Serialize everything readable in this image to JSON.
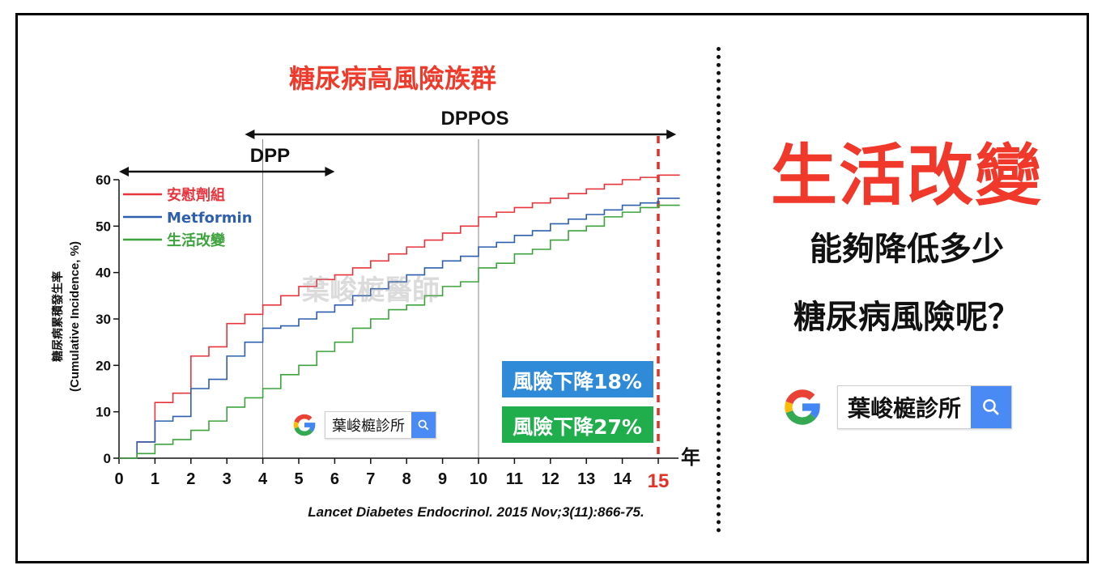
{
  "chart_data": {
    "type": "line",
    "step": true,
    "title": "糖尿病高風險族群",
    "ylabel_cn": "糖尿病累積發生率",
    "ylabel_en": "(Cumulative Incidence, %)",
    "xlabel": "年",
    "xlim": [
      0,
      15
    ],
    "ylim": [
      0,
      60
    ],
    "xticks": [
      "0",
      "1",
      "2",
      "3",
      "4",
      "5",
      "6",
      "7",
      "8",
      "9",
      "10",
      "11",
      "12",
      "13",
      "14",
      "15"
    ],
    "yticks": [
      "0",
      "10",
      "20",
      "30",
      "40",
      "50",
      "60"
    ],
    "highlight_x": 15,
    "vertical_guides": [
      4,
      10
    ],
    "periods": [
      {
        "label": "DPP",
        "from": 0,
        "to": 6
      },
      {
        "label": "DPPOS",
        "from": 3.5,
        "to": 15.5
      }
    ],
    "series": [
      {
        "name": "安慰劑組",
        "color": "#e8343c",
        "x": [
          0.5,
          1,
          1.5,
          2,
          2.5,
          3,
          3.5,
          4,
          4.5,
          5,
          5.5,
          6,
          6.5,
          7,
          7.5,
          8,
          8.5,
          9,
          9.5,
          10,
          10.5,
          11,
          11.5,
          12,
          12.5,
          13,
          13.5,
          14,
          14.5,
          15
        ],
        "y": [
          3.5,
          12,
          14,
          22,
          24,
          29,
          31,
          33,
          35,
          37,
          38.5,
          39.5,
          41,
          42.5,
          44,
          45.5,
          47,
          48.5,
          50,
          52,
          53,
          54,
          55,
          56,
          57,
          58,
          59,
          60,
          60.5,
          61
        ]
      },
      {
        "name": "Metformin",
        "color": "#2d5fae",
        "x": [
          0.5,
          1,
          1.5,
          2,
          2.5,
          3,
          3.5,
          4,
          4.5,
          5,
          5.5,
          6,
          6.5,
          7,
          7.5,
          8,
          8.5,
          9,
          9.5,
          10,
          10.5,
          11,
          11.5,
          12,
          12.5,
          13,
          13.5,
          14,
          14.5,
          15
        ],
        "y": [
          3.5,
          8,
          9,
          15,
          17,
          22,
          25,
          28,
          28.5,
          30,
          31.5,
          33,
          35,
          36.5,
          38,
          39.5,
          41,
          42.5,
          43.5,
          45.5,
          46.5,
          48,
          49,
          50.5,
          51.5,
          52.5,
          53.5,
          54.5,
          55,
          56
        ]
      },
      {
        "name": "生活改變",
        "color": "#3fa33d",
        "x": [
          0.5,
          1,
          1.5,
          2,
          2.5,
          3,
          3.5,
          4,
          4.5,
          5,
          5.5,
          6,
          6.5,
          7,
          7.5,
          8,
          8.5,
          9,
          9.5,
          10,
          10.5,
          11,
          11.5,
          12,
          12.5,
          13,
          13.5,
          14,
          14.5,
          15
        ],
        "y": [
          1,
          3,
          4,
          6,
          8,
          11,
          13,
          15,
          18,
          20,
          23,
          25,
          28,
          30,
          32,
          33,
          35,
          37,
          38,
          41,
          42,
          44,
          45,
          47,
          49,
          50,
          52,
          53,
          54,
          54.5
        ]
      }
    ],
    "annotations": [
      {
        "text": "風險下降18%",
        "color": "#2f8bd8"
      },
      {
        "text": "風險下降27%",
        "color": "#1fae4b"
      }
    ],
    "watermark": "葉峻榳醫師",
    "citation": "Lancet Diabetes Endocrinol. 2015 Nov;3(11):866-75."
  },
  "right_panel": {
    "headline": "生活改變",
    "line1": "能夠降低多少",
    "line2": "糖尿病風險呢？"
  },
  "search_widget": {
    "logo_letter": "G",
    "query": "葉峻榳診所",
    "button_icon": "search-icon",
    "button_color": "#4a8af4"
  },
  "colors": {
    "title_red": "#ef3b2c",
    "highlight_red": "#e23227"
  }
}
